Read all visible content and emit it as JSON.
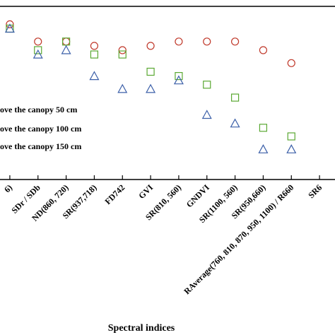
{
  "chart_data": {
    "type": "scatter",
    "xlabel": "Spectral indices",
    "ylabel": "",
    "grid": false,
    "categories": [
      "6)",
      "SDr / SDb",
      "ND(860, 720)",
      "SR(937,718)",
      "FD742",
      "GVI",
      "SR(810, 560)",
      "GNDVI",
      "SR(1100, 560)",
      "SR(950,660)",
      "RAverage(760, 810, 870, 950, 1100) / R660",
      "SR6"
    ],
    "series": [
      {
        "name": "ove the canopy 50 cm",
        "marker": "circle",
        "color": "#c0392b",
        "values": [
          0.98,
          0.96,
          0.96,
          0.955,
          0.95,
          0.955,
          0.96,
          0.96,
          0.96,
          0.95,
          0.935,
          null
        ]
      },
      {
        "name": "ove the canopy 100 cm",
        "marker": "square",
        "color": "#5aa832",
        "values": [
          0.975,
          0.95,
          0.96,
          0.945,
          0.945,
          0.925,
          0.92,
          0.91,
          0.895,
          0.86,
          0.85,
          null
        ]
      },
      {
        "name": "ove the canopy 150 cm",
        "marker": "triangle",
        "color": "#3b5fa8",
        "values": [
          0.975,
          0.945,
          0.95,
          0.92,
          0.905,
          0.905,
          0.915,
          0.875,
          0.865,
          0.835,
          0.835,
          null
        ]
      }
    ],
    "legend_placement": "middle-left",
    "ylim": [
      0.8,
      1.0
    ]
  }
}
